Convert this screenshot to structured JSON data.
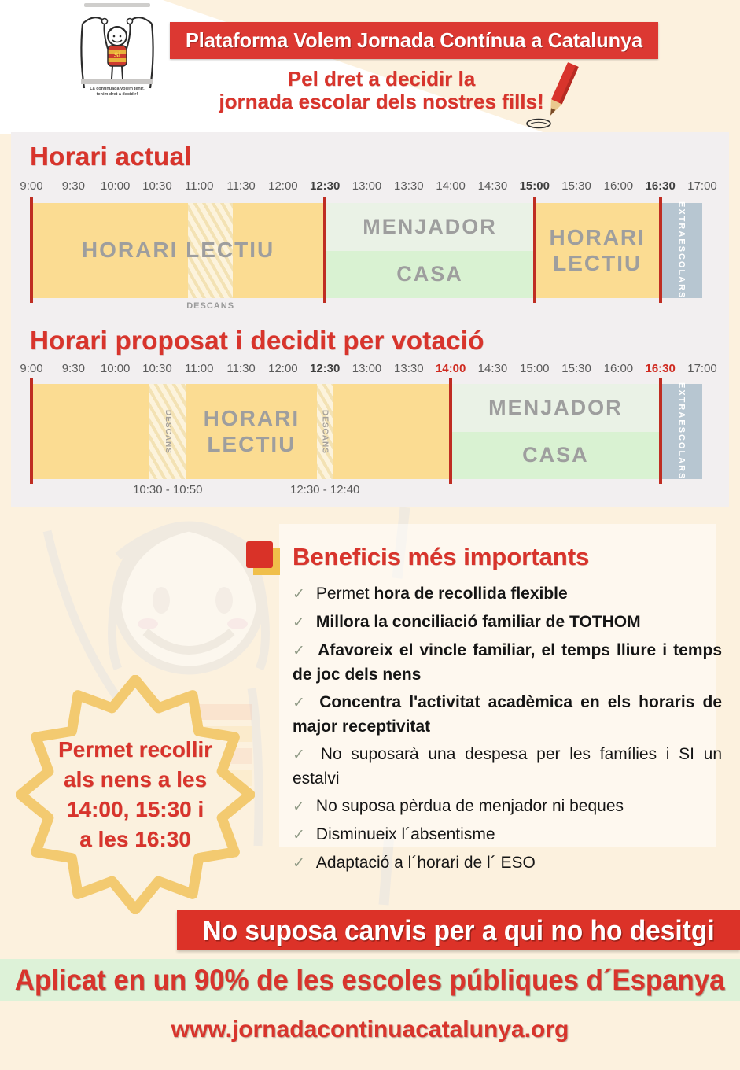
{
  "header": {
    "banner": "Plataforma Volem Jornada Contínua a Catalunya",
    "tagline_line1": "Pel dret a decidir la",
    "tagline_line2": "jornada escolar dels nostres fills!",
    "logo": {
      "shirt_text": "SÍ",
      "caption_line1": "La continuada volem tenir,",
      "caption_line2": "tenim dret a decidir!"
    }
  },
  "schedule": {
    "axis_range": [
      9,
      17
    ],
    "meal_labels": {
      "top": "MENJADOR",
      "bottom": "CASA"
    },
    "extra_label": "EXTRAESCOLARS",
    "current": {
      "title": "Horari actual",
      "times": [
        "9:00",
        "9:30",
        "10:00",
        "10:30",
        "11:00",
        "11:30",
        "12:00",
        "12:30",
        "13:00",
        "13:30",
        "14:00",
        "14:30",
        "15:00",
        "15:30",
        "16:00",
        "16:30",
        "17:00"
      ],
      "bold_times": [
        "12:30",
        "15:00",
        "16:30"
      ],
      "red_times": [],
      "blocks": [
        {
          "from": 9,
          "to": 12.5,
          "kind": "lectiu",
          "label": [
            "HORARI LECTIU"
          ]
        },
        {
          "from": 12.5,
          "to": 15,
          "kind": "meal"
        },
        {
          "from": 15,
          "to": 16.5,
          "kind": "lectiu",
          "label": [
            "HORARI",
            "LECTIU"
          ]
        },
        {
          "from": 16.5,
          "to": 17,
          "kind": "extra"
        }
      ],
      "hatches": [
        {
          "from": 10.87,
          "to": 11.4,
          "label": "",
          "sublabel": "DESCANS"
        }
      ],
      "markers": [
        9,
        12.5,
        15,
        16.5
      ]
    },
    "proposed": {
      "title": "Horari proposat i decidit per votació",
      "times": [
        "9:00",
        "9:30",
        "10:00",
        "10:30",
        "11:00",
        "11:30",
        "12:00",
        "12:30",
        "13:00",
        "13:30",
        "14:00",
        "14:30",
        "15:00",
        "15:30",
        "16:00",
        "16:30",
        "17:00"
      ],
      "bold_times": [
        "12:30"
      ],
      "red_times": [
        "14:00",
        "16:30"
      ],
      "blocks": [
        {
          "from": 9,
          "to": 10.4,
          "kind": "lectiu"
        },
        {
          "from": 10.85,
          "to": 12.4,
          "kind": "lectiu",
          "label": [
            "HORARI",
            "LECTIU"
          ]
        },
        {
          "from": 12.6,
          "to": 14,
          "kind": "lectiu"
        },
        {
          "from": 14,
          "to": 16.5,
          "kind": "meal"
        },
        {
          "from": 16.5,
          "to": 17,
          "kind": "extra"
        }
      ],
      "hatches": [
        {
          "from": 10.4,
          "to": 10.85,
          "label": "DESCANS",
          "sublabel": "10:30 - 10:50"
        },
        {
          "from": 12.4,
          "to": 12.6,
          "label": "DESCANS",
          "sublabel": "12:30 - 12:40"
        }
      ],
      "markers": [
        9,
        14,
        16.5
      ]
    }
  },
  "benefits": {
    "title": "Beneficis més importants",
    "check_glyph": "✓",
    "items": [
      {
        "segments": [
          {
            "t": "Permet ",
            "b": false
          },
          {
            "t": "hora de recollida flexible",
            "b": true
          }
        ]
      },
      {
        "segments": [
          {
            "t": "Millora la conciliació familiar de TOTHOM",
            "b": true
          }
        ]
      },
      {
        "segments": [
          {
            "t": "Afavoreix el vincle familiar, el temps lliure i temps de joc dels nens",
            "b": true
          }
        ]
      },
      {
        "segments": [
          {
            "t": "Concentra l'activitat acadèmica en els horaris de major receptivitat",
            "b": true
          }
        ]
      },
      {
        "segments": [
          {
            "t": "No suposarà una despesa per les famílies i SI un estalvi",
            "b": false
          }
        ]
      },
      {
        "segments": [
          {
            "t": "No suposa pèrdua de menjador ni beques",
            "b": false
          }
        ]
      },
      {
        "segments": [
          {
            "t": "Disminueix l´absentisme",
            "b": false
          }
        ]
      },
      {
        "segments": [
          {
            "t": "Adaptació a l´horari de l´ ESO",
            "b": false
          }
        ]
      }
    ]
  },
  "badge": {
    "lines": [
      "Permet recollir",
      "als nens a les",
      "14:00, 15:30 i",
      "a les 16:30"
    ]
  },
  "banners": {
    "red": "No suposa canvis per a qui no ho desitgi",
    "green": "Aplicat en un 90% de les escoles públiques d´Espanya",
    "url": "www.jornadacontinuacatalunya.org"
  },
  "colors": {
    "brand_red": "#d8342c",
    "banner_red_bg": "#dc3832",
    "cream_bg": "#fcf1de",
    "panel_bg": "#f2eff0",
    "lectiu_yellow": "#fbdc92",
    "menjador_green": "#eaf2e6",
    "casa_green": "#d9f2d2",
    "extraescolars_slate": "#b7c6d1",
    "marker_red": "#bf2d22",
    "green_banner_bg": "#ddf2d8",
    "star_border": "#f3ca70",
    "star_fill": "#fbf1de"
  }
}
